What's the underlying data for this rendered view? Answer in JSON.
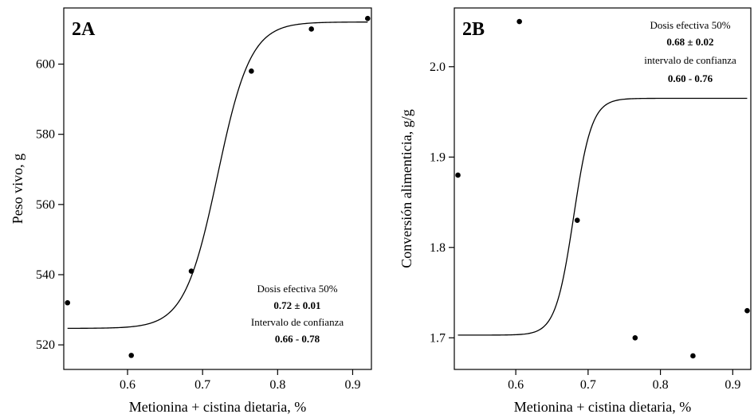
{
  "chart_data": [
    {
      "type": "scatter",
      "panel_label": "2A",
      "xlabel": "Metionina + cistina dietaria, %",
      "ylabel": "Peso vivo, g",
      "xlim": [
        0.515,
        0.925
      ],
      "ylim": [
        513,
        616
      ],
      "xticks": [
        0.6,
        0.7,
        0.8,
        0.9
      ],
      "xtick_labels": [
        "0.6",
        "0.7",
        "0.8",
        "0.9"
      ],
      "yticks": [
        520,
        540,
        560,
        580,
        600
      ],
      "ytick_labels": [
        "520",
        "540",
        "560",
        "580",
        "600"
      ],
      "points": [
        {
          "x": 0.52,
          "y": 532
        },
        {
          "x": 0.605,
          "y": 517
        },
        {
          "x": 0.685,
          "y": 541
        },
        {
          "x": 0.765,
          "y": 598
        },
        {
          "x": 0.845,
          "y": 610
        },
        {
          "x": 0.92,
          "y": 613
        }
      ],
      "fit": {
        "lower": 524.7,
        "upper": 612,
        "ed50": 0.72,
        "scale": 0.022
      },
      "annotation": [
        {
          "text": "Dosis efectiva 50%",
          "bold": false
        },
        {
          "text": "0.72 ± 0.01",
          "bold": true
        },
        {
          "text": "Intervalo de confianza",
          "bold": false
        },
        {
          "text": "0.66 - 0.78",
          "bold": true
        }
      ],
      "annotation_placement": "bottom-right",
      "grid": false
    },
    {
      "type": "scatter",
      "panel_label": "2B",
      "xlabel": "Metionina + cistina dietaria, %",
      "ylabel": "Conversión alimenticia, g/g",
      "xlim": [
        0.515,
        0.925
      ],
      "ylim": [
        1.665,
        2.065
      ],
      "xticks": [
        0.6,
        0.7,
        0.8,
        0.9
      ],
      "xtick_labels": [
        "0.6",
        "0.7",
        "0.8",
        "0.9"
      ],
      "yticks": [
        1.7,
        1.8,
        1.9,
        2.0
      ],
      "ytick_labels": [
        "1.7",
        "1.8",
        "1.9",
        "2.0"
      ],
      "points": [
        {
          "x": 0.52,
          "y": 1.88
        },
        {
          "x": 0.605,
          "y": 2.05
        },
        {
          "x": 0.685,
          "y": 1.83
        },
        {
          "x": 0.765,
          "y": 1.7
        },
        {
          "x": 0.845,
          "y": 1.68
        },
        {
          "x": 0.92,
          "y": 1.73
        }
      ],
      "fit": {
        "lower": 1.703,
        "upper": 1.965,
        "ed50": 0.68,
        "scale": 0.0125
      },
      "annotation": [
        {
          "text": "Dosis efectiva 50%",
          "bold": false
        },
        {
          "text": "0.68 ± 0.02",
          "bold": true
        },
        {
          "text": "intervalo de confianza",
          "bold": false
        },
        {
          "text": "0.60 - 0.76",
          "bold": true
        }
      ],
      "annotation_placement": "top-right",
      "grid": false
    }
  ]
}
